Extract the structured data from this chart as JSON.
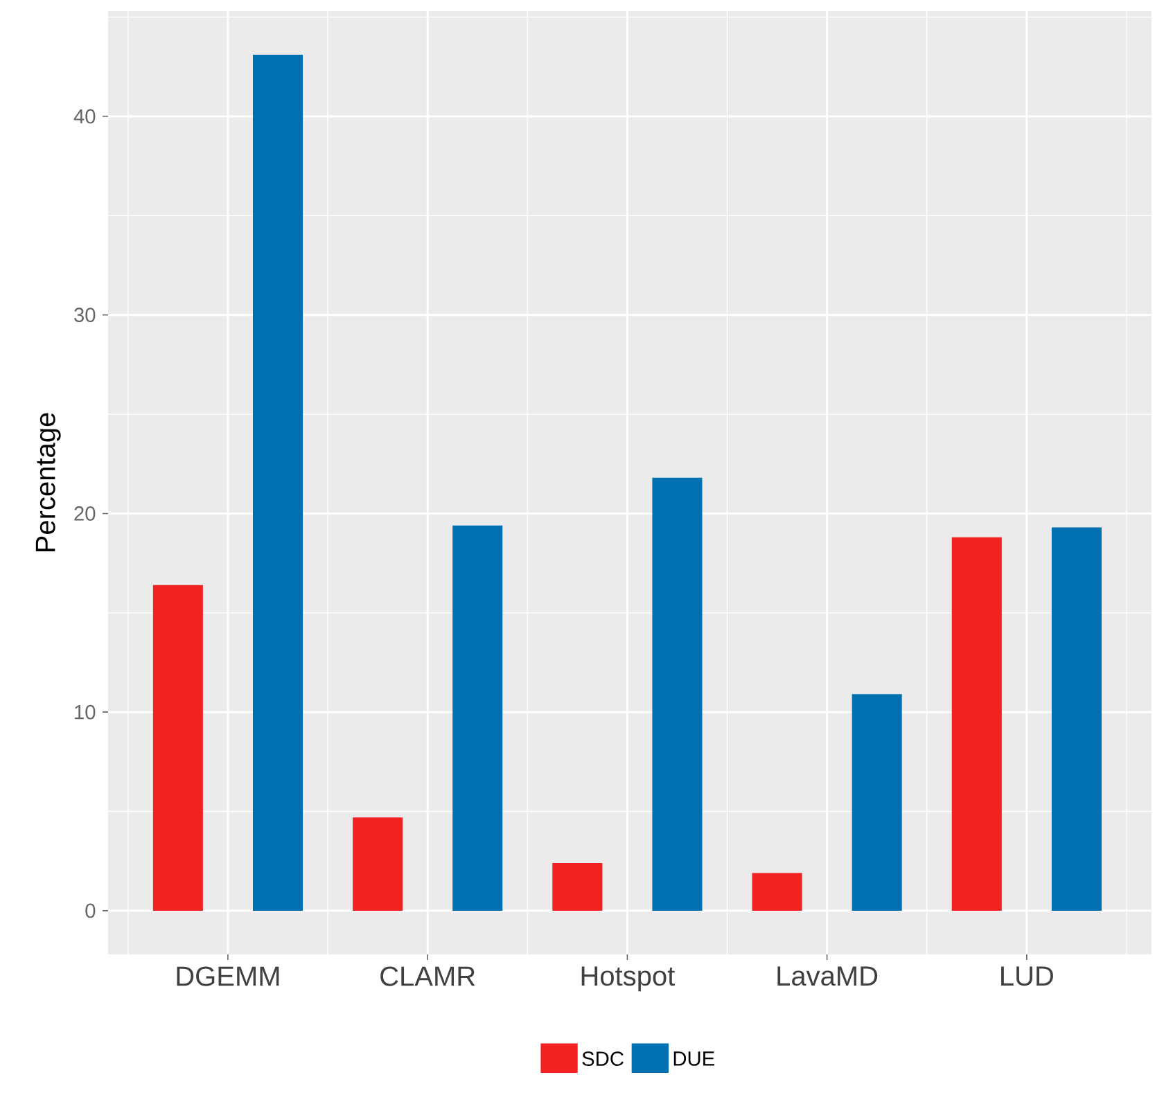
{
  "chart_data": {
    "type": "bar",
    "ylabel": "Percentage",
    "categories": [
      "DGEMM",
      "CLAMR",
      "Hotspot",
      "LavaMD",
      "LUD"
    ],
    "series": [
      {
        "name": "SDC",
        "color": "#f22222",
        "values": [
          16.4,
          4.7,
          2.4,
          1.9,
          18.8
        ]
      },
      {
        "name": "DUE",
        "color": "#0070b0",
        "values": [
          43.1,
          19.4,
          21.8,
          10.9,
          19.3
        ]
      }
    ],
    "ylim": [
      -2.2,
      45.3
    ],
    "yticks": [
      0,
      10,
      20,
      30,
      40
    ],
    "grid": true,
    "legend": "bottom"
  }
}
